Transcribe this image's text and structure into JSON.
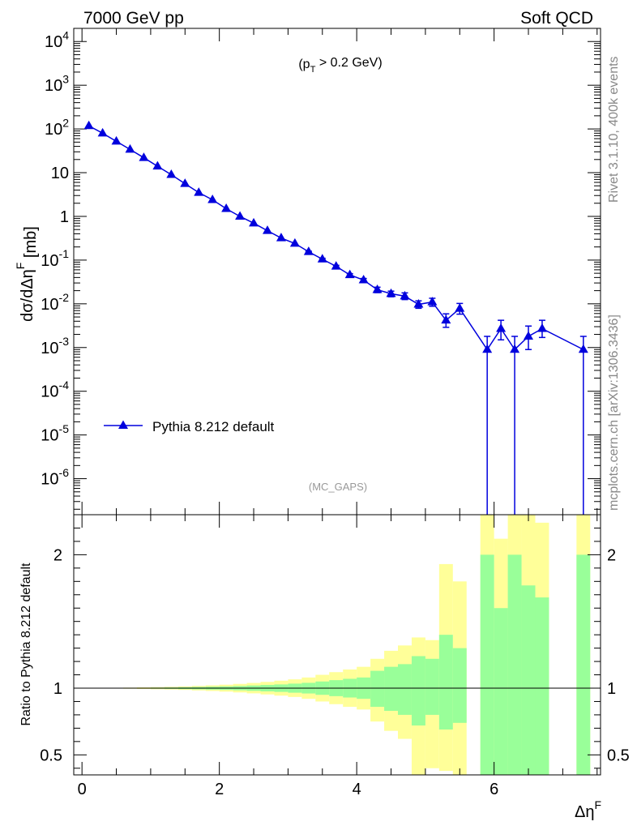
{
  "header": {
    "left_label": "7000 GeV pp",
    "right_label": "Soft QCD"
  },
  "side": {
    "rivet_label": "Rivet 3.1.10,  400k events",
    "mcplots_label": "mcplots.cern.ch [arXiv:1306.3436]"
  },
  "chart_data": [
    {
      "type": "line",
      "panel": "main",
      "ylabel": "dσ/dΔη^F [mb]",
      "cut_label": "(p_T > 0.2 GeV)",
      "analysis_label": "(MC_GAPS)",
      "y_scale": "log",
      "ylim": [
        1.5e-07,
        20000
      ],
      "xlim": [
        -0.12,
        7.55
      ],
      "legend": "left-lower",
      "y_ticks": [
        {
          "v": 10000,
          "label": "10^4"
        },
        {
          "v": 1000,
          "label": "10^3"
        },
        {
          "v": 100,
          "label": "10^2"
        },
        {
          "v": 10,
          "label": "10"
        },
        {
          "v": 1,
          "label": "1"
        },
        {
          "v": 0.1,
          "label": "10^-1"
        },
        {
          "v": 0.01,
          "label": "10^-2"
        },
        {
          "v": 0.001,
          "label": "10^-3"
        },
        {
          "v": 0.0001,
          "label": "10^-4"
        },
        {
          "v": 1e-05,
          "label": "10^-5"
        },
        {
          "v": 1e-06,
          "label": "10^-6"
        }
      ],
      "series": [
        {
          "name": "Pythia 8.212 default",
          "color": "#0000dd",
          "marker": "triangle-up",
          "points": [
            {
              "x": 0.1,
              "y": 118,
              "lo": 118,
              "hi": 118
            },
            {
              "x": 0.3,
              "y": 80,
              "lo": 80,
              "hi": 80
            },
            {
              "x": 0.5,
              "y": 52,
              "lo": 52,
              "hi": 52
            },
            {
              "x": 0.7,
              "y": 34,
              "lo": 34,
              "hi": 34
            },
            {
              "x": 0.9,
              "y": 22,
              "lo": 22,
              "hi": 22
            },
            {
              "x": 1.1,
              "y": 14,
              "lo": 14,
              "hi": 14
            },
            {
              "x": 1.3,
              "y": 9,
              "lo": 9,
              "hi": 9
            },
            {
              "x": 1.5,
              "y": 5.6,
              "lo": 5.6,
              "hi": 5.6
            },
            {
              "x": 1.7,
              "y": 3.5,
              "lo": 3.5,
              "hi": 3.5
            },
            {
              "x": 1.9,
              "y": 2.4,
              "lo": 2.4,
              "hi": 2.4
            },
            {
              "x": 2.1,
              "y": 1.5,
              "lo": 1.5,
              "hi": 1.5
            },
            {
              "x": 2.3,
              "y": 1.0,
              "lo": 1.0,
              "hi": 1.0
            },
            {
              "x": 2.5,
              "y": 0.7,
              "lo": 0.7,
              "hi": 0.7
            },
            {
              "x": 2.7,
              "y": 0.47,
              "lo": 0.47,
              "hi": 0.47
            },
            {
              "x": 2.9,
              "y": 0.32,
              "lo": 0.32,
              "hi": 0.32
            },
            {
              "x": 3.1,
              "y": 0.24,
              "lo": 0.24,
              "hi": 0.24
            },
            {
              "x": 3.3,
              "y": 0.155,
              "lo": 0.15,
              "hi": 0.16
            },
            {
              "x": 3.5,
              "y": 0.105,
              "lo": 0.1,
              "hi": 0.11
            },
            {
              "x": 3.7,
              "y": 0.072,
              "lo": 0.068,
              "hi": 0.076
            },
            {
              "x": 3.9,
              "y": 0.046,
              "lo": 0.043,
              "hi": 0.049
            },
            {
              "x": 4.1,
              "y": 0.035,
              "lo": 0.032,
              "hi": 0.038
            },
            {
              "x": 4.3,
              "y": 0.021,
              "lo": 0.018,
              "hi": 0.024
            },
            {
              "x": 4.5,
              "y": 0.017,
              "lo": 0.0145,
              "hi": 0.0195
            },
            {
              "x": 4.7,
              "y": 0.015,
              "lo": 0.0125,
              "hi": 0.0178
            },
            {
              "x": 4.9,
              "y": 0.0097,
              "lo": 0.0079,
              "hi": 0.0117
            },
            {
              "x": 5.1,
              "y": 0.011,
              "lo": 0.0088,
              "hi": 0.0134
            },
            {
              "x": 5.3,
              "y": 0.0042,
              "lo": 0.0029,
              "hi": 0.0059
            },
            {
              "x": 5.5,
              "y": 0.0078,
              "lo": 0.0058,
              "hi": 0.0102
            },
            {
              "x": 5.9,
              "y": 0.0009,
              "lo": 0,
              "hi": 0.0018
            },
            {
              "x": 6.1,
              "y": 0.0027,
              "lo": 0.0015,
              "hi": 0.0042
            },
            {
              "x": 6.3,
              "y": 0.0009,
              "lo": 0,
              "hi": 0.0018
            },
            {
              "x": 6.5,
              "y": 0.0018,
              "lo": 0.0009,
              "hi": 0.0031
            },
            {
              "x": 6.7,
              "y": 0.0027,
              "lo": 0.0017,
              "hi": 0.0042
            },
            {
              "x": 7.3,
              "y": 0.0009,
              "lo": 0,
              "hi": 0.0018
            }
          ]
        }
      ]
    },
    {
      "type": "area",
      "panel": "ratio",
      "ylabel": "Ratio to Pythia 8.212 default",
      "xlabel": "Δη^F",
      "y_scale": "linear",
      "ylim": [
        0.35,
        2.3
      ],
      "xlim": [
        -0.12,
        7.55
      ],
      "x_ticks": [
        0,
        2,
        4,
        6
      ],
      "y_ticks": [
        0.5,
        1,
        2
      ],
      "reference": 1,
      "bands": {
        "outer_color": "#ffff99",
        "inner_color": "#99ff99",
        "bins": [
          {
            "x0": 0.0,
            "x1": 0.2,
            "o": [
              0.999,
              1.001
            ],
            "i": [
              0.9995,
              1.0005
            ]
          },
          {
            "x0": 0.2,
            "x1": 0.4,
            "o": [
              0.998,
              1.002
            ],
            "i": [
              0.999,
              1.001
            ]
          },
          {
            "x0": 0.4,
            "x1": 0.6,
            "o": [
              0.997,
              1.003
            ],
            "i": [
              0.998,
              1.002
            ]
          },
          {
            "x0": 0.6,
            "x1": 0.8,
            "o": [
              0.996,
              1.004
            ],
            "i": [
              0.998,
              1.002
            ]
          },
          {
            "x0": 0.8,
            "x1": 1.0,
            "o": [
              0.994,
              1.006
            ],
            "i": [
              0.997,
              1.003
            ]
          },
          {
            "x0": 1.0,
            "x1": 1.2,
            "o": [
              0.992,
              1.008
            ],
            "i": [
              0.996,
              1.004
            ]
          },
          {
            "x0": 1.2,
            "x1": 1.4,
            "o": [
              0.99,
              1.01
            ],
            "i": [
              0.995,
              1.005
            ]
          },
          {
            "x0": 1.4,
            "x1": 1.6,
            "o": [
              0.987,
              1.013
            ],
            "i": [
              0.993,
              1.007
            ]
          },
          {
            "x0": 1.6,
            "x1": 1.8,
            "o": [
              0.983,
              1.017
            ],
            "i": [
              0.991,
              1.009
            ]
          },
          {
            "x0": 1.8,
            "x1": 2.0,
            "o": [
              0.979,
              1.021
            ],
            "i": [
              0.989,
              1.011
            ]
          },
          {
            "x0": 2.0,
            "x1": 2.2,
            "o": [
              0.974,
              1.026
            ],
            "i": [
              0.987,
              1.013
            ]
          },
          {
            "x0": 2.2,
            "x1": 2.4,
            "o": [
              0.968,
              1.032
            ],
            "i": [
              0.984,
              1.016
            ]
          },
          {
            "x0": 2.4,
            "x1": 2.6,
            "o": [
              0.961,
              1.039
            ],
            "i": [
              0.98,
              1.02
            ]
          },
          {
            "x0": 2.6,
            "x1": 2.8,
            "o": [
              0.953,
              1.047
            ],
            "i": [
              0.976,
              1.024
            ]
          },
          {
            "x0": 2.8,
            "x1": 3.0,
            "o": [
              0.944,
              1.056
            ],
            "i": [
              0.972,
              1.028
            ]
          },
          {
            "x0": 3.0,
            "x1": 3.2,
            "o": [
              0.934,
              1.066
            ],
            "i": [
              0.966,
              1.034
            ]
          },
          {
            "x0": 3.2,
            "x1": 3.4,
            "o": [
              0.92,
              1.08
            ],
            "i": [
              0.96,
              1.04
            ]
          },
          {
            "x0": 3.4,
            "x1": 3.6,
            "o": [
              0.9,
              1.1
            ],
            "i": [
              0.95,
              1.05
            ]
          },
          {
            "x0": 3.6,
            "x1": 3.8,
            "o": [
              0.88,
              1.12
            ],
            "i": [
              0.94,
              1.06
            ]
          },
          {
            "x0": 3.8,
            "x1": 4.0,
            "o": [
              0.86,
              1.14
            ],
            "i": [
              0.93,
              1.07
            ]
          },
          {
            "x0": 4.0,
            "x1": 4.2,
            "o": [
              0.84,
              1.16
            ],
            "i": [
              0.92,
              1.08
            ]
          },
          {
            "x0": 4.2,
            "x1": 4.4,
            "o": [
              0.75,
              1.22
            ],
            "i": [
              0.86,
              1.13
            ]
          },
          {
            "x0": 4.4,
            "x1": 4.6,
            "o": [
              0.68,
              1.28
            ],
            "i": [
              0.83,
              1.16
            ]
          },
          {
            "x0": 4.6,
            "x1": 4.8,
            "o": [
              0.62,
              1.32
            ],
            "i": [
              0.8,
              1.18
            ]
          },
          {
            "x0": 4.8,
            "x1": 5.0,
            "o": [
              0.35,
              1.38
            ],
            "i": [
              0.72,
              1.24
            ]
          },
          {
            "x0": 5.0,
            "x1": 5.2,
            "o": [
              0.4,
              1.36
            ],
            "i": [
              0.8,
              1.22
            ]
          },
          {
            "x0": 5.2,
            "x1": 5.4,
            "o": [
              0.38,
              1.93
            ],
            "i": [
              0.69,
              1.4
            ]
          },
          {
            "x0": 5.4,
            "x1": 5.6,
            "o": [
              0.35,
              1.8
            ],
            "i": [
              0.74,
              1.3
            ]
          },
          {
            "x0": 5.8,
            "x1": 6.0,
            "o": [
              0.35,
              2.3
            ],
            "i": [
              0.35,
              2.0
            ]
          },
          {
            "x0": 6.0,
            "x1": 6.2,
            "o": [
              0.35,
              2.12
            ],
            "i": [
              0.35,
              1.6
            ]
          },
          {
            "x0": 6.2,
            "x1": 6.4,
            "o": [
              0.35,
              2.3
            ],
            "i": [
              0.35,
              2.0
            ]
          },
          {
            "x0": 6.4,
            "x1": 6.6,
            "o": [
              0.35,
              2.3
            ],
            "i": [
              0.35,
              1.77
            ]
          },
          {
            "x0": 6.6,
            "x1": 6.8,
            "o": [
              0.35,
              2.24
            ],
            "i": [
              0.35,
              1.68
            ]
          },
          {
            "x0": 7.2,
            "x1": 7.4,
            "o": [
              0.35,
              2.3
            ],
            "i": [
              0.35,
              2.0
            ]
          }
        ]
      }
    }
  ]
}
